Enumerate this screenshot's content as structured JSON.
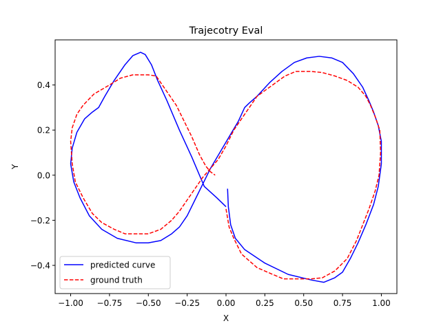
{
  "chart_data": {
    "type": "line",
    "title": "Trajecotry Eval",
    "xlabel": "X",
    "ylabel": "Y",
    "xlim": [
      -1.1,
      1.1
    ],
    "ylim": [
      -0.525,
      0.6
    ],
    "xticks": [
      -1.0,
      -0.75,
      -0.5,
      -0.25,
      0.0,
      0.25,
      0.5,
      0.75,
      1.0
    ],
    "xtick_labels": [
      "−1.00",
      "−0.75",
      "−0.50",
      "−0.25",
      "0.00",
      "0.25",
      "0.50",
      "0.75",
      "1.00"
    ],
    "yticks": [
      -0.4,
      -0.2,
      0.0,
      0.2,
      0.4
    ],
    "ytick_labels": [
      "−0.4",
      "−0.2",
      "0.0",
      "0.2",
      "0.4"
    ],
    "grid": false,
    "legend_position": "lower-left",
    "series": [
      {
        "name": "predicted curve",
        "color": "#0000ff",
        "style": "solid",
        "points": [
          [
            0.01,
            -0.06
          ],
          [
            0.015,
            -0.14
          ],
          [
            0.03,
            -0.22
          ],
          [
            0.06,
            -0.28
          ],
          [
            0.12,
            -0.33
          ],
          [
            0.25,
            -0.39
          ],
          [
            0.4,
            -0.44
          ],
          [
            0.55,
            -0.465
          ],
          [
            0.63,
            -0.475
          ],
          [
            0.7,
            -0.455
          ],
          [
            0.75,
            -0.43
          ],
          [
            0.8,
            -0.37
          ],
          [
            0.85,
            -0.3
          ],
          [
            0.9,
            -0.22
          ],
          [
            0.95,
            -0.13
          ],
          [
            0.98,
            -0.05
          ],
          [
            1.0,
            0.05
          ],
          [
            1.0,
            0.15
          ],
          [
            0.98,
            0.22
          ],
          [
            0.95,
            0.28
          ],
          [
            0.92,
            0.33
          ],
          [
            0.88,
            0.39
          ],
          [
            0.82,
            0.45
          ],
          [
            0.75,
            0.5
          ],
          [
            0.68,
            0.52
          ],
          [
            0.6,
            0.527
          ],
          [
            0.52,
            0.52
          ],
          [
            0.44,
            0.5
          ],
          [
            0.36,
            0.46
          ],
          [
            0.28,
            0.41
          ],
          [
            0.2,
            0.35
          ],
          [
            0.15,
            0.32
          ],
          [
            0.12,
            0.3
          ],
          [
            0.08,
            0.24
          ],
          [
            0.02,
            0.17
          ],
          [
            -0.04,
            0.1
          ],
          [
            -0.1,
            0.03
          ],
          [
            -0.15,
            -0.04
          ],
          [
            -0.2,
            -0.11
          ],
          [
            -0.25,
            -0.18
          ],
          [
            -0.3,
            -0.23
          ],
          [
            -0.35,
            -0.26
          ],
          [
            -0.42,
            -0.29
          ],
          [
            -0.5,
            -0.3
          ],
          [
            -0.58,
            -0.3
          ],
          [
            -0.7,
            -0.28
          ],
          [
            -0.8,
            -0.24
          ],
          [
            -0.88,
            -0.18
          ],
          [
            -0.94,
            -0.1
          ],
          [
            -0.98,
            -0.03
          ],
          [
            -1.0,
            0.05
          ],
          [
            -0.99,
            0.12
          ],
          [
            -0.96,
            0.19
          ],
          [
            -0.91,
            0.25
          ],
          [
            -0.86,
            0.28
          ],
          [
            -0.82,
            0.3
          ],
          [
            -0.78,
            0.35
          ],
          [
            -0.72,
            0.42
          ],
          [
            -0.65,
            0.49
          ],
          [
            -0.6,
            0.53
          ],
          [
            -0.55,
            0.545
          ],
          [
            -0.52,
            0.535
          ],
          [
            -0.48,
            0.49
          ],
          [
            -0.44,
            0.42
          ],
          [
            -0.38,
            0.33
          ],
          [
            -0.3,
            0.2
          ],
          [
            -0.22,
            0.08
          ],
          [
            -0.14,
            -0.05
          ],
          [
            -0.06,
            -0.1
          ],
          [
            0.0,
            -0.14
          ]
        ]
      },
      {
        "name": "ground truth",
        "color": "#ff0000",
        "style": "dashed",
        "points": [
          [
            -0.0,
            -0.15
          ],
          [
            0.02,
            -0.23
          ],
          [
            0.05,
            -0.28
          ],
          [
            0.1,
            -0.35
          ],
          [
            0.2,
            -0.41
          ],
          [
            0.3,
            -0.44
          ],
          [
            0.37,
            -0.46
          ],
          [
            0.45,
            -0.46
          ],
          [
            0.55,
            -0.46
          ],
          [
            0.62,
            -0.455
          ],
          [
            0.7,
            -0.425
          ],
          [
            0.78,
            -0.37
          ],
          [
            0.84,
            -0.29
          ],
          [
            0.88,
            -0.22
          ],
          [
            0.92,
            -0.15
          ],
          [
            0.96,
            -0.07
          ],
          [
            0.985,
            0.0
          ],
          [
            0.995,
            0.1
          ],
          [
            0.99,
            0.2
          ],
          [
            0.96,
            0.26
          ],
          [
            0.93,
            0.31
          ],
          [
            0.9,
            0.35
          ],
          [
            0.85,
            0.39
          ],
          [
            0.78,
            0.42
          ],
          [
            0.7,
            0.44
          ],
          [
            0.62,
            0.455
          ],
          [
            0.55,
            0.46
          ],
          [
            0.45,
            0.46
          ],
          [
            0.38,
            0.44
          ],
          [
            0.3,
            0.4
          ],
          [
            0.2,
            0.35
          ],
          [
            0.15,
            0.3
          ],
          [
            0.1,
            0.25
          ],
          [
            0.05,
            0.2
          ],
          [
            0.0,
            0.13
          ],
          [
            -0.05,
            0.07
          ],
          [
            -0.1,
            0.03
          ],
          [
            -0.15,
            -0.01
          ],
          [
            -0.2,
            -0.06
          ],
          [
            -0.25,
            -0.11
          ],
          [
            -0.3,
            -0.16
          ],
          [
            -0.35,
            -0.2
          ],
          [
            -0.42,
            -0.24
          ],
          [
            -0.5,
            -0.26
          ],
          [
            -0.58,
            -0.26
          ],
          [
            -0.65,
            -0.26
          ],
          [
            -0.72,
            -0.24
          ],
          [
            -0.8,
            -0.21
          ],
          [
            -0.86,
            -0.17
          ],
          [
            -0.92,
            -0.1
          ],
          [
            -0.97,
            -0.03
          ],
          [
            -0.99,
            0.05
          ],
          [
            -1.0,
            0.15
          ],
          [
            -0.99,
            0.21
          ],
          [
            -0.96,
            0.27
          ],
          [
            -0.92,
            0.31
          ],
          [
            -0.85,
            0.36
          ],
          [
            -0.75,
            0.4
          ],
          [
            -0.68,
            0.43
          ],
          [
            -0.6,
            0.445
          ],
          [
            -0.5,
            0.445
          ],
          [
            -0.45,
            0.44
          ],
          [
            -0.42,
            0.41
          ],
          [
            -0.38,
            0.37
          ],
          [
            -0.32,
            0.31
          ],
          [
            -0.27,
            0.24
          ],
          [
            -0.22,
            0.17
          ],
          [
            -0.17,
            0.09
          ],
          [
            -0.13,
            0.04
          ],
          [
            -0.1,
            0.015
          ],
          [
            -0.07,
            -0.0
          ]
        ]
      }
    ]
  }
}
